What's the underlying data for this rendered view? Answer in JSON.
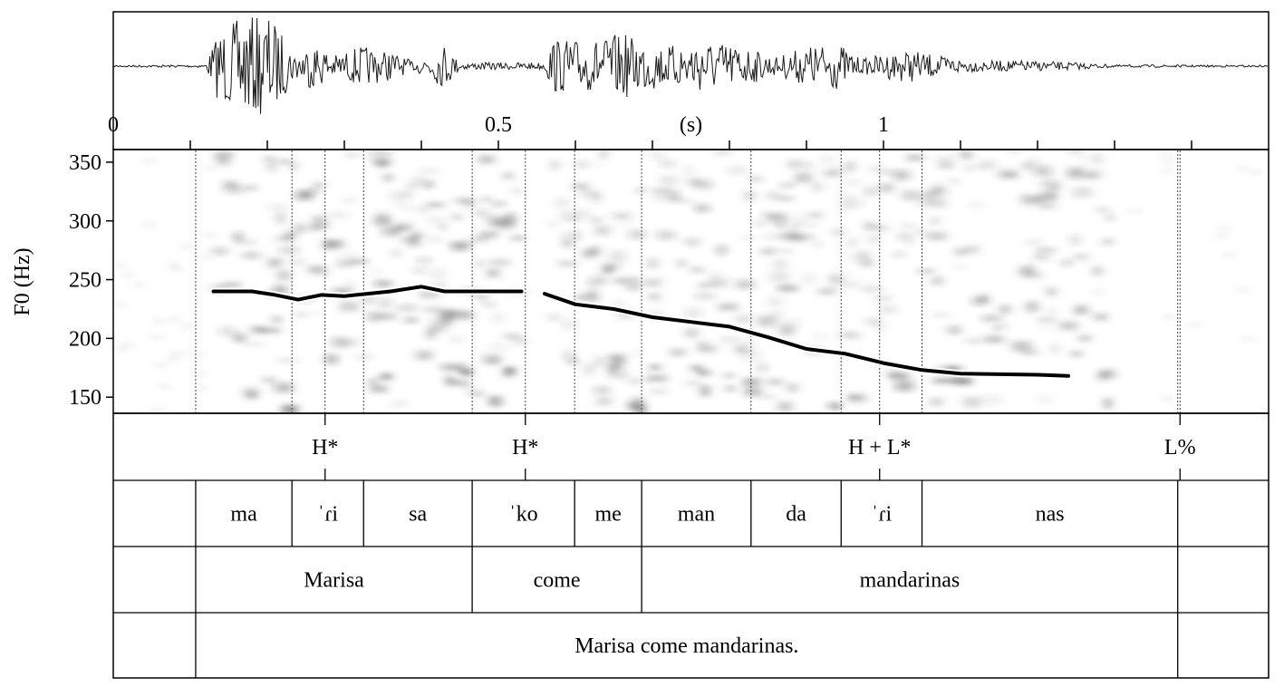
{
  "waveform": {
    "time_labels": [
      {
        "time": 0,
        "label": "0"
      },
      {
        "time": 0.5,
        "label": "0.5"
      },
      {
        "time": 1,
        "label": "1"
      }
    ],
    "unit_label": "(s)",
    "unit_time": 0.75,
    "duration": 1.5
  },
  "spectrogram": {
    "ylabel": "F0 (Hz)",
    "yticks": [
      150,
      200,
      250,
      300,
      350
    ],
    "ylim": [
      137,
      360
    ]
  },
  "chart_data": {
    "type": "line",
    "xlabel": "(s)",
    "ylabel": "F0 (Hz)",
    "ylim": [
      137,
      360
    ],
    "series": [
      {
        "points": [
          [
            0.13,
            240
          ],
          [
            0.18,
            240
          ],
          [
            0.21,
            237
          ],
          [
            0.24,
            233
          ],
          [
            0.27,
            237
          ],
          [
            0.3,
            236
          ],
          [
            0.33,
            238
          ],
          [
            0.36,
            240
          ],
          [
            0.4,
            244
          ],
          [
            0.43,
            240
          ],
          [
            0.47,
            240
          ],
          [
            0.53,
            240
          ]
        ]
      },
      {
        "points": [
          [
            0.56,
            238
          ],
          [
            0.6,
            229
          ],
          [
            0.65,
            225
          ],
          [
            0.7,
            218
          ],
          [
            0.75,
            214
          ],
          [
            0.8,
            210
          ],
          [
            0.85,
            201
          ],
          [
            0.9,
            191
          ],
          [
            0.95,
            187
          ],
          [
            1.0,
            179
          ],
          [
            1.05,
            173
          ],
          [
            1.1,
            170
          ],
          [
            1.2,
            169
          ],
          [
            1.24,
            168
          ]
        ]
      }
    ]
  },
  "tones": [
    {
      "label": "H*",
      "time": 0.275
    },
    {
      "label": "H*",
      "time": 0.535
    },
    {
      "label": "H + L*",
      "time": 0.995
    },
    {
      "label": "L%",
      "time": 1.385
    }
  ],
  "tiers": {
    "syllables": [
      {
        "label": "",
        "start": 0,
        "end": 0.107
      },
      {
        "label": "ma",
        "start": 0.107,
        "end": 0.232
      },
      {
        "label": "ˈɾi",
        "start": 0.232,
        "end": 0.325
      },
      {
        "label": "sa",
        "start": 0.325,
        "end": 0.466
      },
      {
        "label": "ˈko",
        "start": 0.466,
        "end": 0.599
      },
      {
        "label": "me",
        "start": 0.599,
        "end": 0.686
      },
      {
        "label": "man",
        "start": 0.686,
        "end": 0.828
      },
      {
        "label": "da",
        "start": 0.828,
        "end": 0.945
      },
      {
        "label": "ˈɾi",
        "start": 0.945,
        "end": 1.05
      },
      {
        "label": "nas",
        "start": 1.05,
        "end": 1.382
      },
      {
        "label": "",
        "start": 1.382,
        "end": 1.5
      }
    ],
    "words": [
      {
        "label": "",
        "start": 0,
        "end": 0.107
      },
      {
        "label": "Marisa",
        "start": 0.107,
        "end": 0.466
      },
      {
        "label": "come",
        "start": 0.466,
        "end": 0.686
      },
      {
        "label": "mandarinas",
        "start": 0.686,
        "end": 1.382
      },
      {
        "label": "",
        "start": 1.382,
        "end": 1.5
      }
    ],
    "sentence": [
      {
        "label": "",
        "start": 0,
        "end": 0.107
      },
      {
        "label": "Marisa come mandarinas.",
        "start": 0.107,
        "end": 1.382
      },
      {
        "label": "",
        "start": 1.382,
        "end": 1.5
      }
    ]
  }
}
